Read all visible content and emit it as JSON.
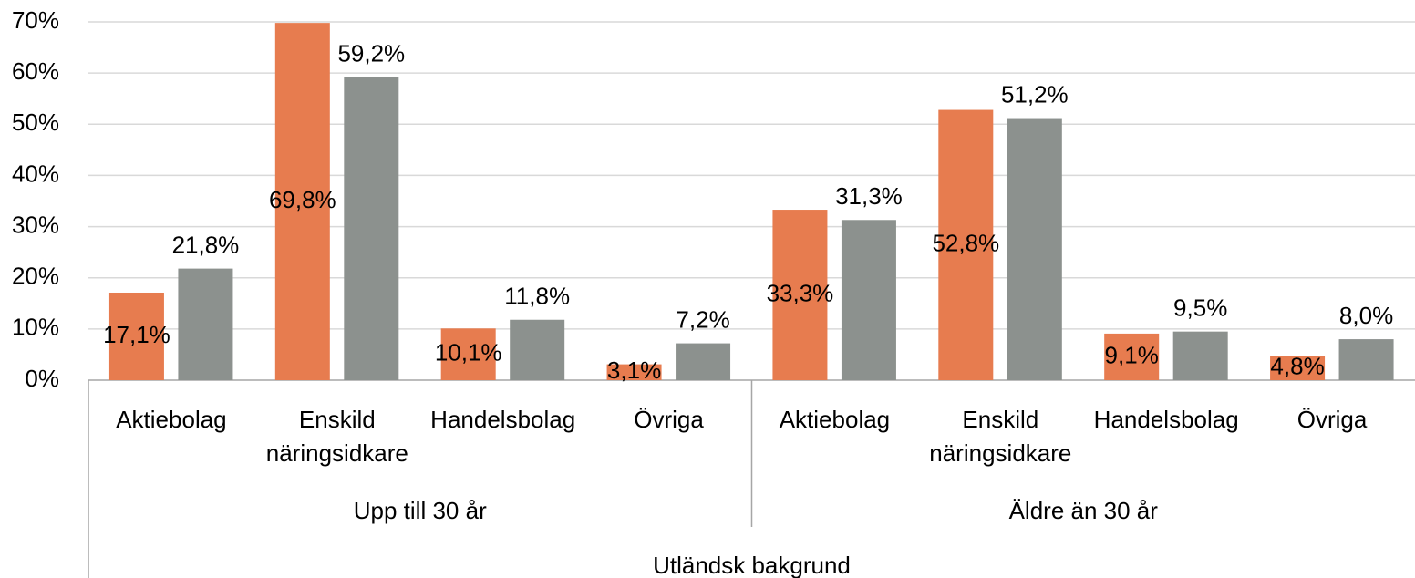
{
  "chart_data": {
    "type": "bar",
    "categories": [
      "Aktiebolag",
      "Enskild näringsidkare",
      "Handelsbolag",
      "Övriga",
      "Aktiebolag",
      "Enskild näringsidkare",
      "Handelsbolag",
      "Övriga"
    ],
    "category_groups": [
      "Upp till 30 år",
      "Äldre än 30 år"
    ],
    "category_supergroup": "Utländsk bakgrund",
    "series": [
      {
        "color": "#e77c4f",
        "values": [
          17.1,
          69.8,
          10.1,
          3.1,
          33.3,
          52.8,
          9.1,
          4.8
        ],
        "value_labels": [
          "17,1%",
          "69,8%",
          "10,1%",
          "3,1%",
          "33,3%",
          "52,8%",
          "9,1%",
          "4,8%"
        ]
      },
      {
        "color": "#8c918e",
        "values": [
          21.8,
          59.2,
          11.8,
          7.2,
          31.3,
          51.2,
          9.5,
          8.0
        ],
        "value_labels": [
          "21,8%",
          "59,2%",
          "11,8%",
          "7,2%",
          "31,3%",
          "51,2%",
          "9,5%",
          "8,0%"
        ]
      }
    ],
    "ylim": [
      0,
      70
    ],
    "yticks": [
      {
        "value": 0,
        "label": "0%"
      },
      {
        "value": 10,
        "label": "10%"
      },
      {
        "value": 20,
        "label": "20%"
      },
      {
        "value": 30,
        "label": "30%"
      },
      {
        "value": 40,
        "label": "40%"
      },
      {
        "value": 50,
        "label": "50%"
      },
      {
        "value": 60,
        "label": "60%"
      },
      {
        "value": 70,
        "label": "70%"
      }
    ],
    "grid": true
  }
}
